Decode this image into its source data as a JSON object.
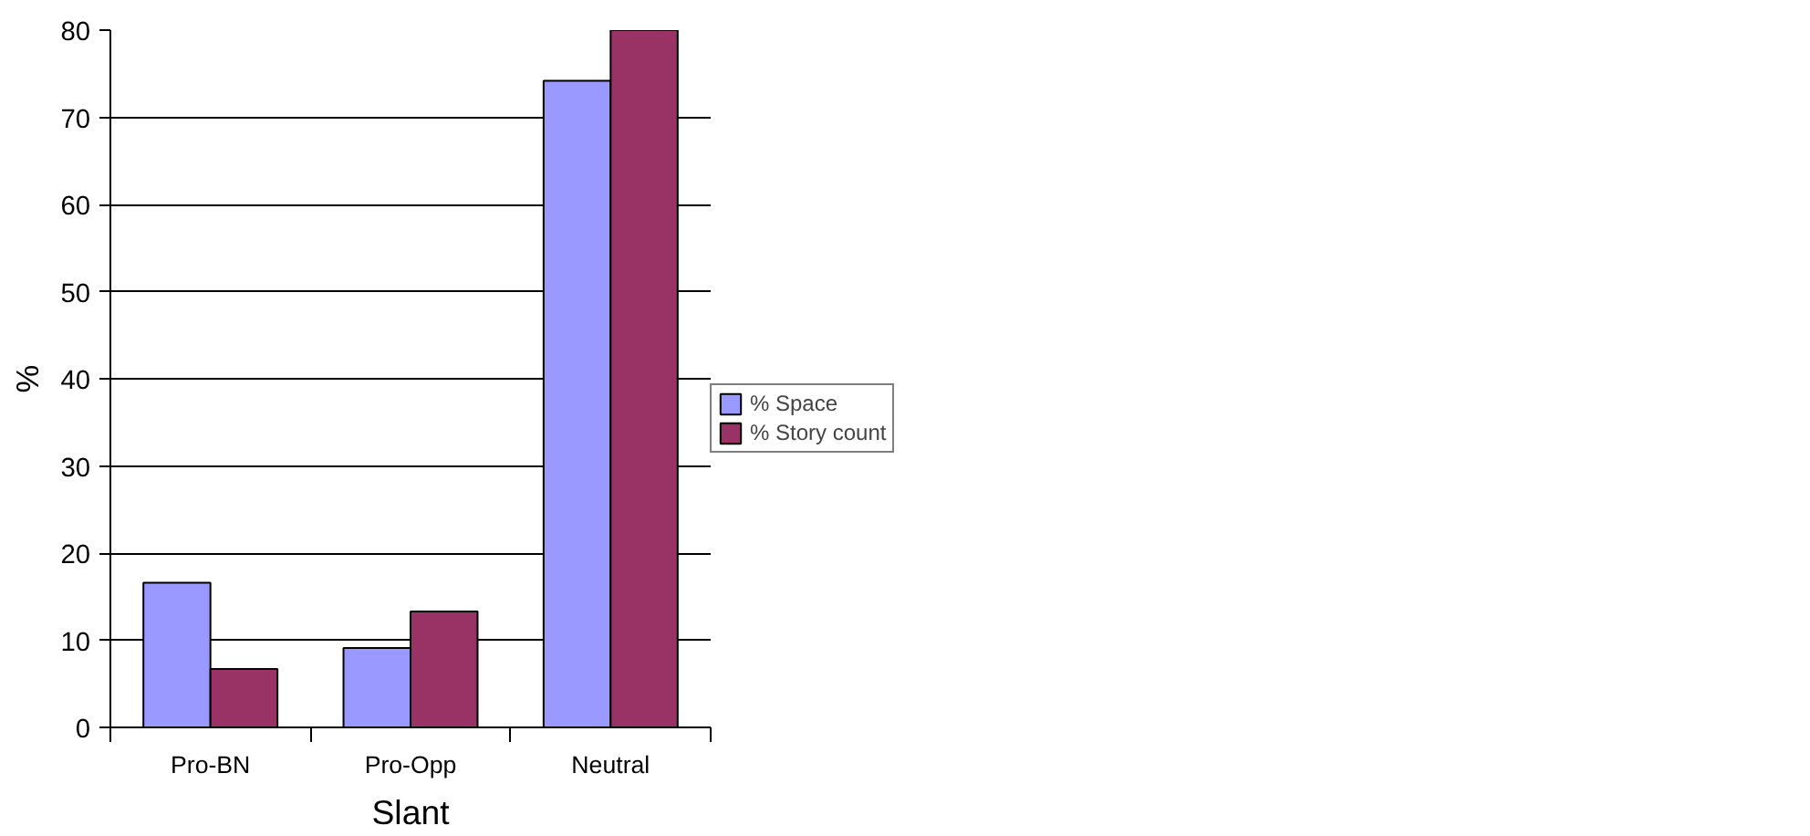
{
  "chart_data": {
    "type": "bar",
    "xlabel": "Slant",
    "ylabel": "%",
    "categories": [
      "Pro-BN",
      "Pro-Opp",
      "Neutral"
    ],
    "series": [
      {
        "name": "% Space",
        "color": "#9999ff",
        "values": [
          16.6,
          9.1,
          74.2
        ]
      },
      {
        "name": "% Story count",
        "color": "#993366",
        "values": [
          6.7,
          13.3,
          80
        ]
      }
    ],
    "ylim": [
      0,
      80
    ],
    "yticks": [
      0,
      10,
      20,
      30,
      40,
      50,
      60,
      70,
      80
    ],
    "grid": "y",
    "legend": "right"
  }
}
